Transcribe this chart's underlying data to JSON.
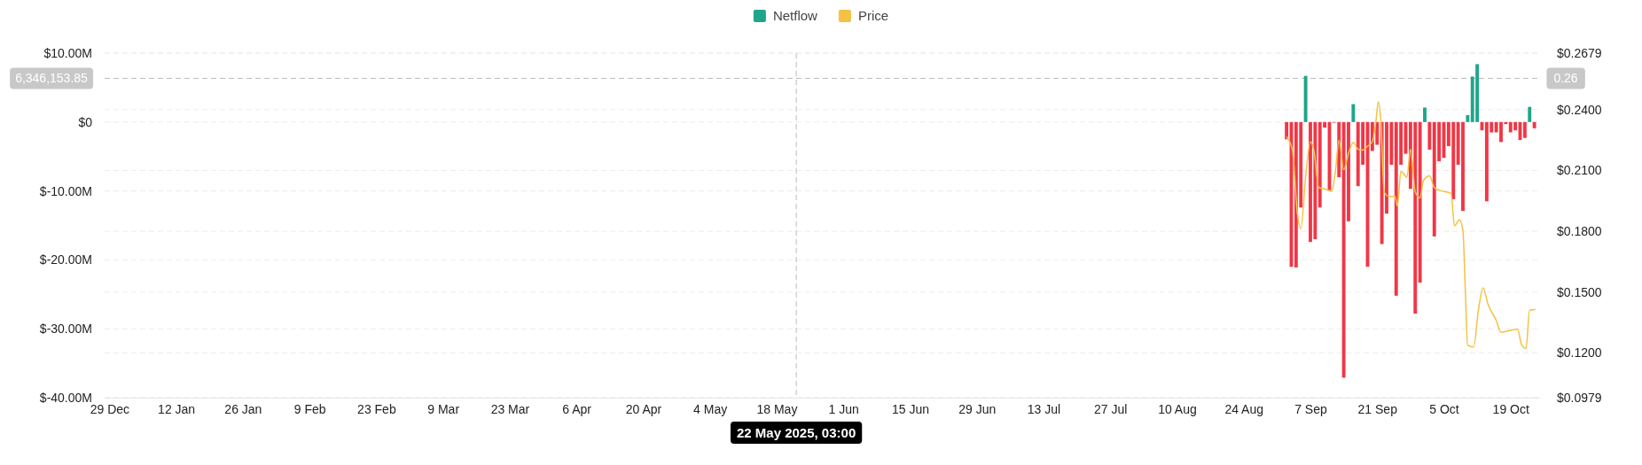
{
  "chart_data": {
    "type": "bar",
    "legend": "top",
    "grid": true,
    "x": [
      "2025-09-02",
      "2025-09-03",
      "2025-09-04",
      "2025-09-05",
      "2025-09-06",
      "2025-09-07",
      "2025-09-08",
      "2025-09-09",
      "2025-09-10",
      "2025-09-11",
      "2025-09-12",
      "2025-09-13",
      "2025-09-14",
      "2025-09-15",
      "2025-09-16",
      "2025-09-17",
      "2025-09-18",
      "2025-09-19",
      "2025-09-20",
      "2025-09-21",
      "2025-09-22",
      "2025-09-23",
      "2025-09-24",
      "2025-09-25",
      "2025-09-26",
      "2025-09-27",
      "2025-09-28",
      "2025-09-29",
      "2025-09-30",
      "2025-10-01",
      "2025-10-02",
      "2025-10-03",
      "2025-10-04",
      "2025-10-05",
      "2025-10-06",
      "2025-10-07",
      "2025-10-08",
      "2025-10-09",
      "2025-10-10",
      "2025-10-11",
      "2025-10-12",
      "2025-10-13",
      "2025-10-14",
      "2025-10-15",
      "2025-10-16",
      "2025-10-17",
      "2025-10-18",
      "2025-10-19",
      "2025-10-20",
      "2025-10-21",
      "2025-10-22",
      "2025-10-23",
      "2025-10-24"
    ],
    "series": [
      {
        "name": "Netflow",
        "color": "#1fa58a",
        "values": [
          -2500000,
          -21000000,
          -21100000,
          -12400000,
          6700000,
          -17400000,
          -17000000,
          -12400000,
          -800000,
          -9900000,
          -100000,
          -8000000,
          -37100000,
          -14400000,
          2600000,
          -9300000,
          -6200000,
          -21000000,
          -4200000,
          -3300000,
          -17700000,
          -13300000,
          -6200000,
          -25200000,
          -6200000,
          -4600000,
          -9700000,
          -27800000,
          -23300000,
          2100000,
          -4000000,
          -16600000,
          -5700000,
          -5200000,
          -3500000,
          -11200000,
          -6200000,
          -12900000,
          1000000,
          6600000,
          8400000,
          -1200000,
          -11500000,
          -1500000,
          -1500000,
          -2900000,
          -300000,
          -1500000,
          -1200000,
          -2600000,
          -2300000,
          2200000,
          -900000
        ],
        "colors": [
          "#f23645",
          "#f23645",
          "#f23645",
          "#f23645",
          "#1fa58a",
          "#f23645",
          "#f23645",
          "#f23645",
          "#f23645",
          "#f23645",
          "#f23645",
          "#f23645",
          "#f23645",
          "#f23645",
          "#1fa58a",
          "#f23645",
          "#f23645",
          "#f23645",
          "#f23645",
          "#f23645",
          "#f23645",
          "#f23645",
          "#f23645",
          "#f23645",
          "#f23645",
          "#f23645",
          "#f23645",
          "#f23645",
          "#f23645",
          "#1fa58a",
          "#f23645",
          "#f23645",
          "#f23645",
          "#f23645",
          "#f23645",
          "#f23645",
          "#f23645",
          "#f23645",
          "#1fa58a",
          "#1fa58a",
          "#1fa58a",
          "#f23645",
          "#f23645",
          "#f23645",
          "#f23645",
          "#f23645",
          "#f23645",
          "#f23645",
          "#f23645",
          "#f23645",
          "#f23645",
          "#1fa58a",
          "#f23645"
        ]
      },
      {
        "name": "Price",
        "type": "line",
        "axis": "y2",
        "color": "#f5c143",
        "marker": "none",
        "line_style": "solid",
        "x": [
          "2025-09-02",
          "2025-09-03T06:00",
          "2025-09-04T06:00",
          "2025-09-05",
          "2025-09-06",
          "2025-09-07",
          "2025-09-07T18:00",
          "2025-09-08T18:00",
          "2025-09-10",
          "2025-09-11T12:00",
          "2025-09-12T06:00",
          "2025-09-13",
          "2025-09-14",
          "2025-09-15",
          "2025-09-16",
          "2025-09-17",
          "2025-09-18",
          "2025-09-19",
          "2025-09-20",
          "2025-09-20T18:00",
          "2025-09-21T06:00",
          "2025-09-21T18:00",
          "2025-09-22T12:00",
          "2025-09-23T12:00",
          "2025-09-24T18:00",
          "2025-09-25T06:00",
          "2025-09-26",
          "2025-09-27T06:00",
          "2025-09-28",
          "2025-09-29",
          "2025-09-30",
          "2025-09-30T18:00",
          "2025-10-02",
          "2025-10-03",
          "2025-10-04T06:00",
          "2025-10-06T12:00",
          "2025-10-07T06:00",
          "2025-10-08T06:00",
          "2025-10-09",
          "2025-10-09T12:00",
          "2025-10-10",
          "2025-10-11T06:00",
          "2025-10-12T06:00",
          "2025-10-13T06:00",
          "2025-10-14T06:00",
          "2025-10-16",
          "2025-10-17",
          "2025-10-18T12:00",
          "2025-10-20T12:00",
          "2025-10-21T06:00",
          "2025-10-22T06:00",
          "2025-10-23",
          "2025-10-24T06:00"
        ],
        "values": [
          0.2267,
          0.2198,
          0.1892,
          0.1812,
          0.2067,
          0.2242,
          0.2198,
          0.2016,
          0.2009,
          0.1997,
          0.2096,
          0.2249,
          0.2104,
          0.2184,
          0.2239,
          0.2205,
          0.2201,
          0.222,
          0.2242,
          0.2344,
          0.2439,
          0.2358,
          0.1994,
          0.1972,
          0.1972,
          0.1924,
          0.2096,
          0.2067,
          0.2205,
          0.1994,
          0.1965,
          0.2052,
          0.2074,
          0.2016,
          0.2001,
          0.1987,
          0.1827,
          0.1856,
          0.1805,
          0.1513,
          0.1237,
          0.1229,
          0.1411,
          0.1521,
          0.1441,
          0.136,
          0.1302,
          0.1309,
          0.1317,
          0.1244,
          0.1222,
          0.1411,
          0.1414
        ]
      }
    ],
    "xlim": [
      "2024-12-28",
      "2025-10-25"
    ],
    "xticks": [
      {
        "value": "2024-12-29",
        "label": "29 Dec"
      },
      {
        "value": "2025-01-12",
        "label": "12 Jan"
      },
      {
        "value": "2025-01-26",
        "label": "26 Jan"
      },
      {
        "value": "2025-02-09",
        "label": "9 Feb"
      },
      {
        "value": "2025-02-23",
        "label": "23 Feb"
      },
      {
        "value": "2025-03-09",
        "label": "9 Mar"
      },
      {
        "value": "2025-03-23",
        "label": "23 Mar"
      },
      {
        "value": "2025-04-06",
        "label": "6 Apr"
      },
      {
        "value": "2025-04-20",
        "label": "20 Apr"
      },
      {
        "value": "2025-05-04",
        "label": "4 May"
      },
      {
        "value": "2025-05-18",
        "label": "18 May"
      },
      {
        "value": "2025-06-01",
        "label": "1 Jun"
      },
      {
        "value": "2025-06-15",
        "label": "15 Jun"
      },
      {
        "value": "2025-06-29",
        "label": "29 Jun"
      },
      {
        "value": "2025-07-13",
        "label": "13 Jul"
      },
      {
        "value": "2025-07-27",
        "label": "27 Jul"
      },
      {
        "value": "2025-08-10",
        "label": "10 Aug"
      },
      {
        "value": "2025-08-24",
        "label": "24 Aug"
      },
      {
        "value": "2025-09-07",
        "label": "7 Sep"
      },
      {
        "value": "2025-09-21",
        "label": "21 Sep"
      },
      {
        "value": "2025-10-05",
        "label": "5 Oct"
      },
      {
        "value": "2025-10-19",
        "label": "19 Oct"
      }
    ],
    "ylim": [
      -40000000,
      10000000
    ],
    "yticks": [
      {
        "value": 10000000,
        "label": "$10.00M"
      },
      {
        "value": 0,
        "label": "$0"
      },
      {
        "value": -10000000,
        "label": "$-10.00M"
      },
      {
        "value": -20000000,
        "label": "$-20.00M"
      },
      {
        "value": -30000000,
        "label": "$-30.00M"
      },
      {
        "value": -40000000,
        "label": "$-40.00M"
      }
    ],
    "y2lim": [
      0.0979,
      0.2679
    ],
    "y2ticks": [
      {
        "value": 0.2679,
        "label": "$0.2679"
      },
      {
        "value": 0.24,
        "label": "$0.2400"
      },
      {
        "value": 0.21,
        "label": "$0.2100"
      },
      {
        "value": 0.18,
        "label": "$0.1800"
      },
      {
        "value": 0.15,
        "label": "$0.1500"
      },
      {
        "value": 0.12,
        "label": "$0.1200"
      },
      {
        "value": 0.0979,
        "label": "$0.0979"
      }
    ],
    "ref_lines": [
      {
        "axis": "x",
        "value": "2025-05-22T03:00",
        "label": "22 May 2025, 03:00",
        "line_style": "dashed",
        "color": "#bbbbbb"
      },
      {
        "axis": "y",
        "value": 6346153.85,
        "label": "6,346,153.85",
        "line_style": "dashed",
        "color": "#bbbbbb"
      }
    ],
    "annotations": [
      "0.26"
    ]
  }
}
